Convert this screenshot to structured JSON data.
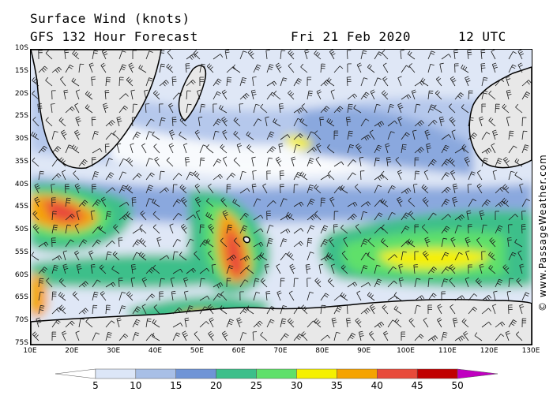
{
  "header": {
    "title": "Surface Wind (knots)",
    "forecast": "GFS 132 Hour Forecast",
    "date": "Fri 21 Feb 2020",
    "time": "12 UTC"
  },
  "credit": "© www.PassageWeather.com",
  "map": {
    "lat_labels": [
      "10S",
      "15S",
      "20S",
      "25S",
      "30S",
      "35S",
      "40S",
      "45S",
      "50S",
      "55S",
      "60S",
      "65S",
      "70S",
      "75S"
    ],
    "lon_labels": [
      "10E",
      "20E",
      "30E",
      "40E",
      "50E",
      "60E",
      "70E",
      "80E",
      "90E",
      "100E",
      "110E",
      "120E",
      "130E"
    ],
    "lat_range": [
      -10,
      -75
    ],
    "lon_range": [
      10,
      130
    ]
  },
  "scale": {
    "unit": "knots",
    "labels": [
      "5",
      "10",
      "15",
      "20",
      "25",
      "30",
      "35",
      "40",
      "45",
      "50"
    ],
    "colors": [
      "#ffffff",
      "#dce6f7",
      "#a8bfe6",
      "#6f94d6",
      "#3cbf8a",
      "#5fe06a",
      "#f5f000",
      "#f5a300",
      "#e84a3a",
      "#c00000",
      "#c000c0"
    ]
  },
  "colors": {
    "land": "#e8e8e8",
    "coast": "#000000",
    "barb": "#1a1a1a",
    "ocean_base": "#dfe7f6"
  }
}
